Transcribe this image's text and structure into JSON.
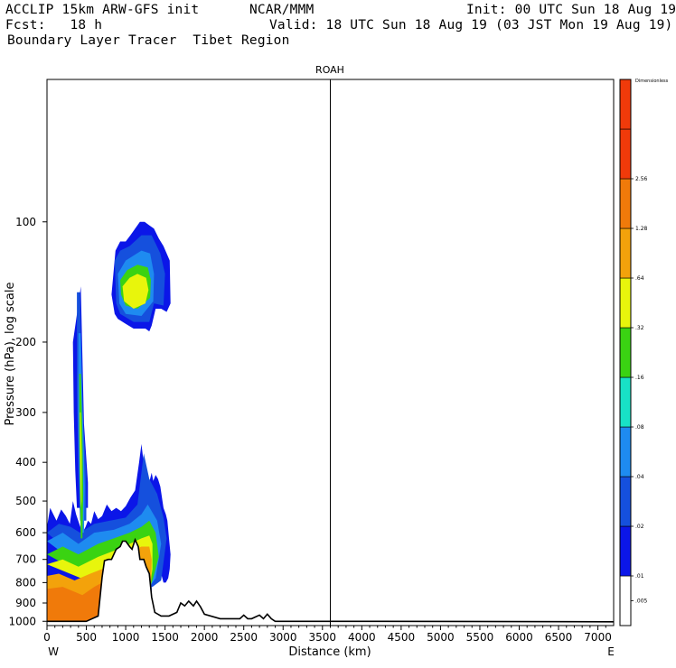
{
  "header": {
    "line1_left": "ACCLIP 15km ARW-GFS init",
    "line1_center": "NCAR/MMM",
    "line1_right": "Init: 00 UTC Sun 18 Aug 19",
    "line2_left": "Fcst:   18 h",
    "line2_right": "Valid: 18 UTC Sun 18 Aug 19 (03 JST Mon 19 Aug 19)",
    "line3_left": "Boundary Layer Tracer  Tibet Region"
  },
  "chart_data": {
    "type": "heatmap",
    "title": "ROAH",
    "xlabel": "Distance (km)",
    "ylabel": "Pressure (hPa), log scale",
    "x_ticks": [
      0,
      500,
      1000,
      1500,
      2000,
      2500,
      3000,
      3500,
      4000,
      4500,
      5000,
      5500,
      6000,
      6500,
      7000
    ],
    "xlim": [
      0,
      7200
    ],
    "y_ticks": [
      100,
      200,
      300,
      400,
      500,
      600,
      700,
      800,
      900,
      1000
    ],
    "ylim_hpa": [
      1025,
      44
    ],
    "y_scale": "log",
    "x_end_labels": {
      "left": "W",
      "right": "E"
    },
    "marker_line_km": 3600,
    "colorbar": {
      "unit_label": "Dimensionless",
      "levels": [
        ".005",
        ".01",
        ".02",
        ".04",
        ".08",
        ".16",
        ".32",
        ".64",
        "1.28",
        "2.56"
      ],
      "colors": [
        "#ffffff",
        "#0b16e8",
        "#1550dd",
        "#1e8bf0",
        "#18e2c6",
        "#3ad312",
        "#e8f50c",
        "#f3a20b",
        "#f07a0a",
        "#f03a0a"
      ]
    },
    "terrain": {
      "km": [
        0,
        500,
        550,
        650,
        700,
        730,
        780,
        820,
        880,
        930,
        960,
        1000,
        1050,
        1080,
        1120,
        1160,
        1180,
        1230,
        1260,
        1300,
        1330,
        1370,
        1450,
        1550,
        1650,
        1700,
        1750,
        1800,
        1860,
        1900,
        1950,
        2000,
        2200,
        2450,
        2500,
        2550,
        2600,
        2650,
        2700,
        2750,
        2800,
        2850,
        2900,
        3000,
        4200,
        7200
      ],
      "hpa": [
        1000,
        1000,
        990,
        970,
        775,
        705,
        700,
        700,
        660,
        650,
        630,
        630,
        650,
        660,
        625,
        650,
        700,
        700,
        730,
        760,
        870,
        950,
        970,
        970,
        950,
        900,
        915,
        890,
        915,
        890,
        920,
        960,
        985,
        985,
        965,
        985,
        985,
        975,
        965,
        985,
        960,
        985,
        1000,
        1000,
        1000,
        1003
      ]
    },
    "tracer_bands": [
      {
        "level_color": "#0b16e8",
        "plume_lower": {
          "km": [
            0,
            40,
            80,
            120,
            180,
            240,
            290,
            330,
            370,
            410,
            450,
            490,
            520,
            560,
            600,
            650,
            700,
            760,
            820,
            880,
            940,
            1000,
            1060,
            1120,
            1170,
            1200,
            1240,
            1260,
            1290,
            1310,
            1330,
            1350,
            1380,
            1410,
            1440,
            1480,
            1510,
            1530,
            1550,
            1570,
            1560,
            1540,
            1510,
            1480,
            1450,
            1420,
            1390,
            1360,
            1340,
            1330
          ],
          "hpa": [
            580,
            520,
            540,
            560,
            525,
            545,
            570,
            500,
            540,
            570,
            600,
            580,
            560,
            570,
            530,
            555,
            545,
            510,
            530,
            520,
            530,
            515,
            490,
            470,
            400,
            360,
            420,
            445,
            455,
            440,
            425,
            445,
            430,
            440,
            460,
            520,
            540,
            560,
            620,
            680,
            740,
            780,
            800,
            800,
            760,
            720,
            700,
            690,
            700,
            720
          ]
        },
        "plume_upper": {
          "km": [
            420,
            430,
            470,
            520,
            520
          ],
          "hpa": [
            150,
            145,
            320,
            450,
            520
          ]
        },
        "upper_blob": {
          "km": [
            820,
            870,
            930,
            1000,
            1060,
            1120,
            1180,
            1240,
            1300,
            1360,
            1420,
            1480,
            1560,
            1570,
            1520,
            1450,
            1380,
            1330,
            1300,
            1250,
            1180,
            1100,
            1000,
            900,
            860,
            820
          ],
          "hpa": [
            152,
            118,
            112,
            112,
            108,
            104,
            100,
            100,
            102,
            104,
            110,
            115,
            125,
            160,
            168,
            165,
            165,
            182,
            188,
            185,
            185,
            185,
            180,
            175,
            170,
            152
          ]
        }
      }
    ]
  }
}
